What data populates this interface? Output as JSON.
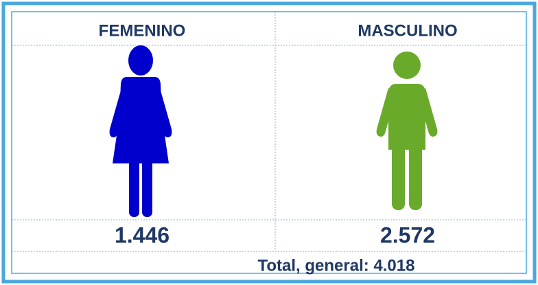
{
  "table": {
    "headers": [
      "FEMENINO",
      "MASCULINO"
    ],
    "values": [
      "1.446",
      "2.572"
    ],
    "total": "Total, general: 4.018"
  }
}
